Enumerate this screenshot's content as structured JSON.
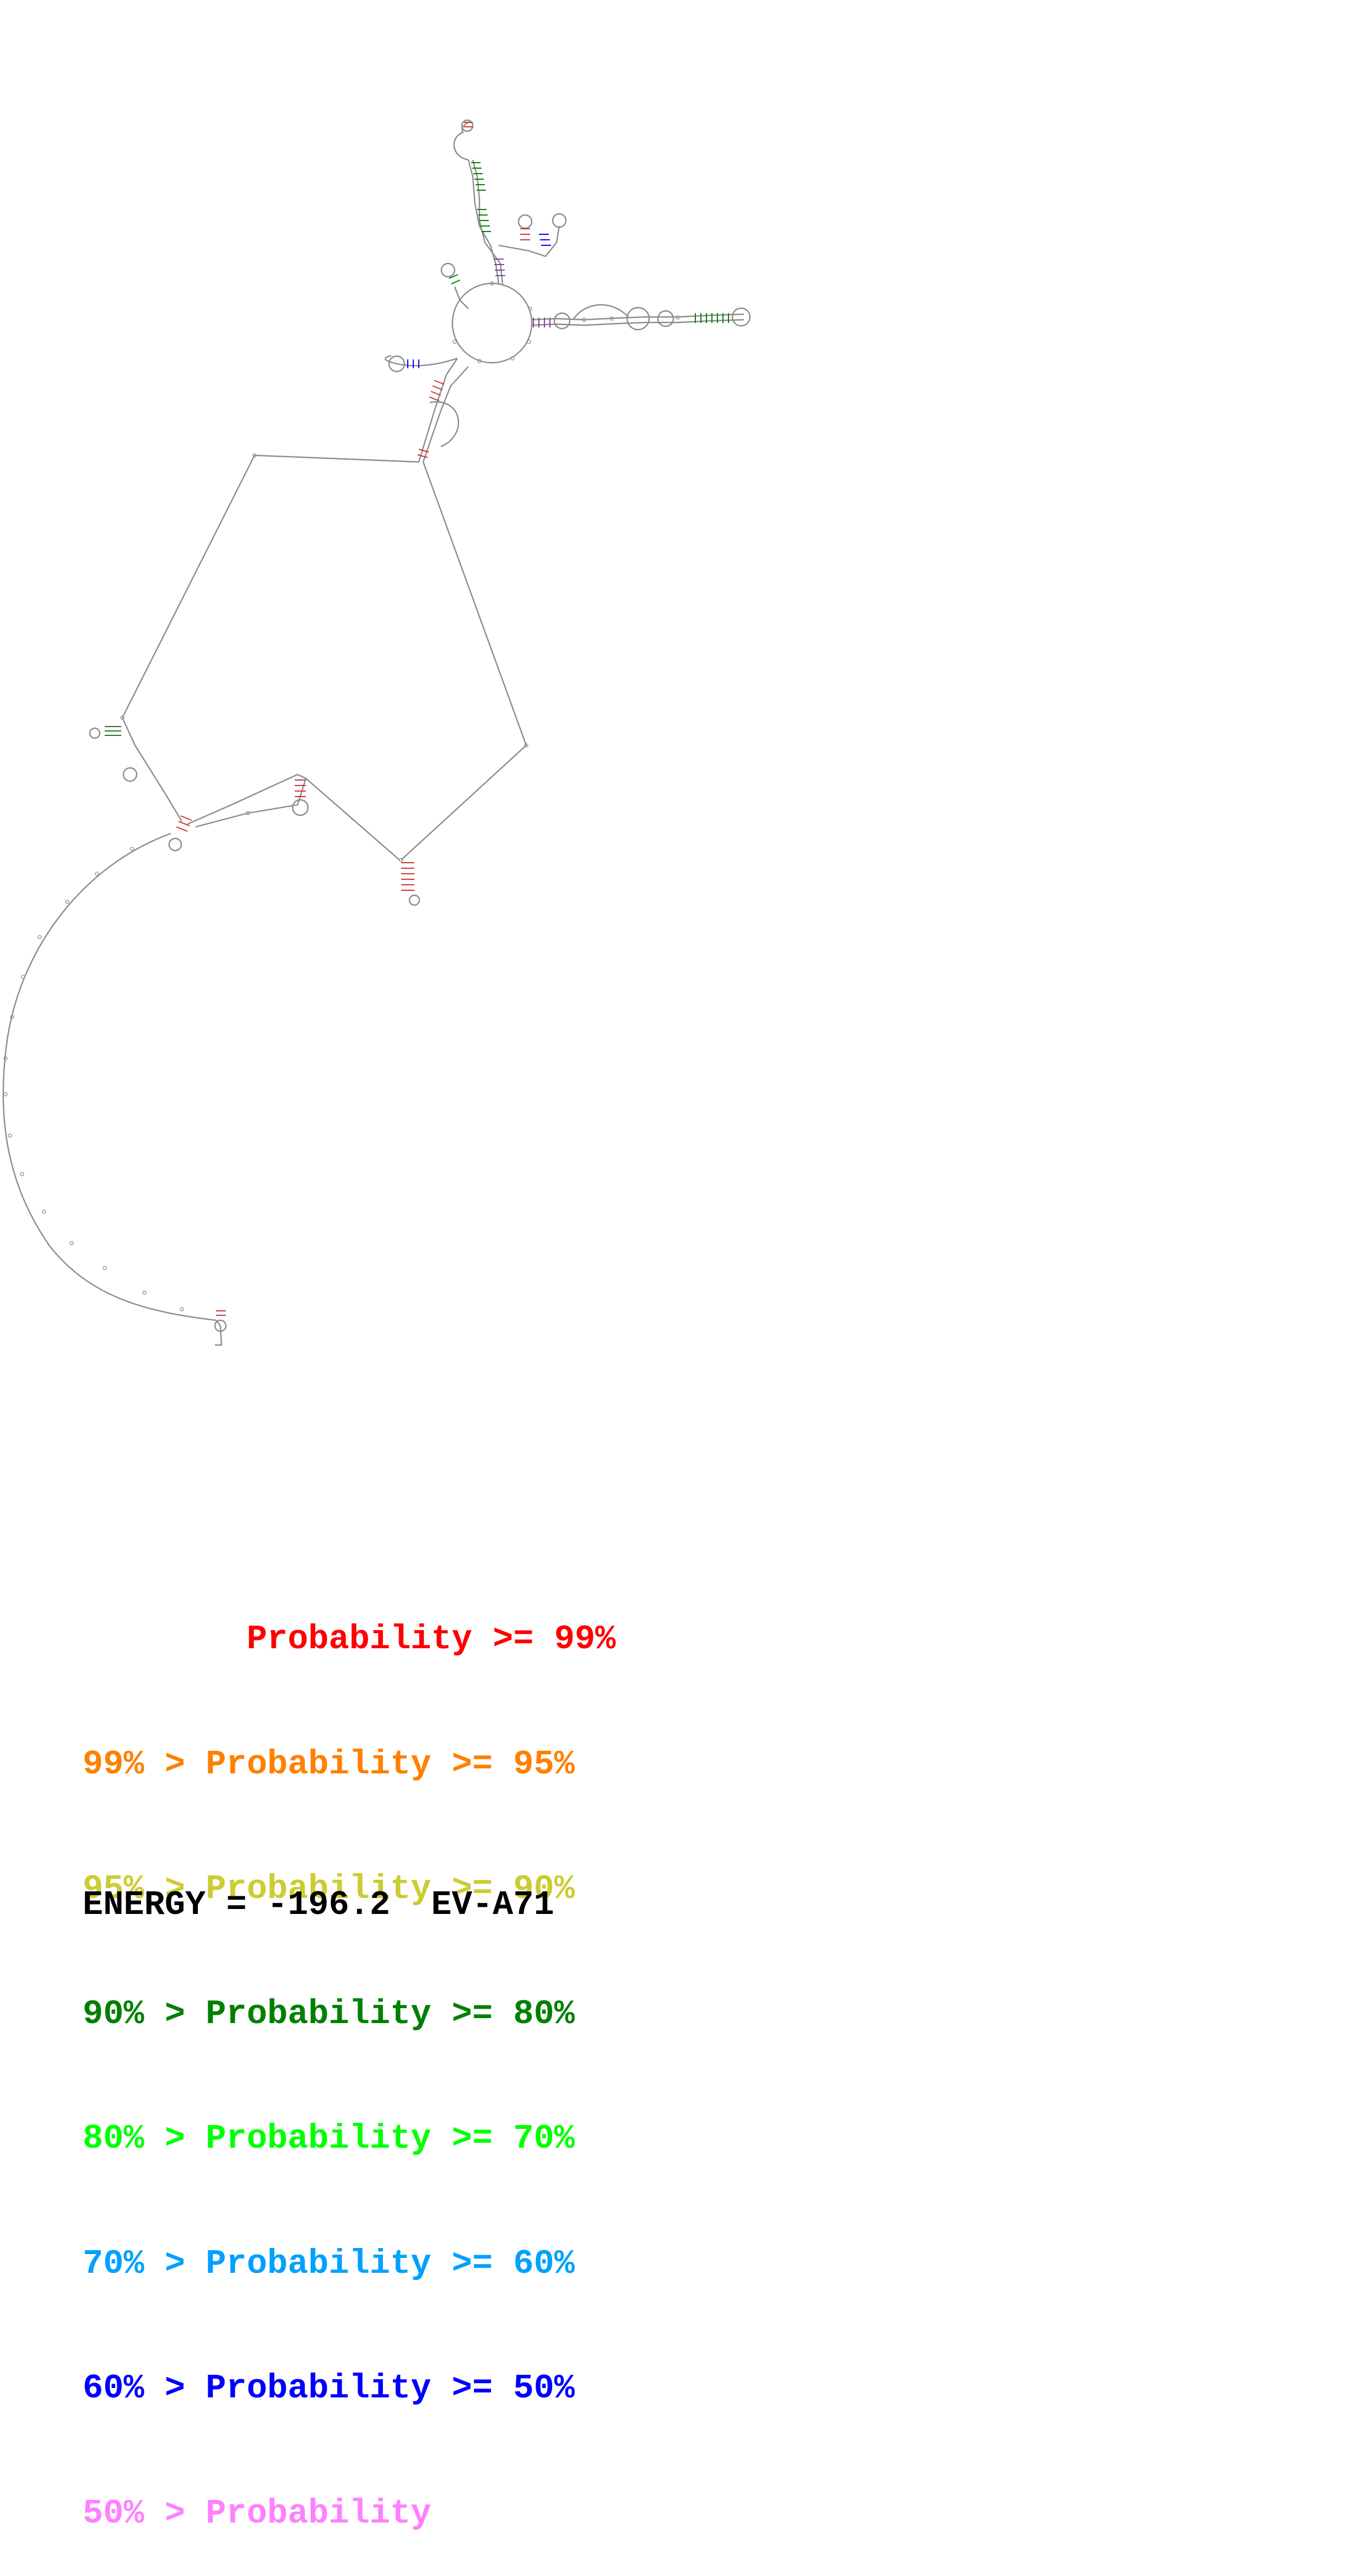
{
  "legend": {
    "items": [
      {
        "range_low": "",
        "sep": "",
        "label": "Probability",
        "range_high": ">= 99%",
        "color": "#ff0000"
      },
      {
        "range_low": "99%",
        "sep": ">",
        "label": "Probability",
        "range_high": ">= 95%",
        "color": "#ff8000"
      },
      {
        "range_low": "95%",
        "sep": ">",
        "label": "Probability",
        "range_high": ">= 90%",
        "color": "#cccc33"
      },
      {
        "range_low": "90%",
        "sep": ">",
        "label": "Probability",
        "range_high": ">= 80%",
        "color": "#008000"
      },
      {
        "range_low": "80%",
        "sep": ">",
        "label": "Probability",
        "range_high": ">= 70%",
        "color": "#00ff00"
      },
      {
        "range_low": "70%",
        "sep": ">",
        "label": "Probability",
        "range_high": ">= 60%",
        "color": "#00a0ff"
      },
      {
        "range_low": "60%",
        "sep": ">",
        "label": "Probability",
        "range_high": ">= 50%",
        "color": "#0000ff"
      },
      {
        "range_low": "50%",
        "sep": ">",
        "label": "Probability",
        "range_high": "",
        "color": "#ff80ff"
      }
    ]
  },
  "energy": {
    "label": "ENERGY = ",
    "value": "-196.2",
    "name": "EV-A71"
  },
  "structure": {
    "backbone_color": "#8c8c8c",
    "nucleotide_color": "#9a9a9a"
  }
}
